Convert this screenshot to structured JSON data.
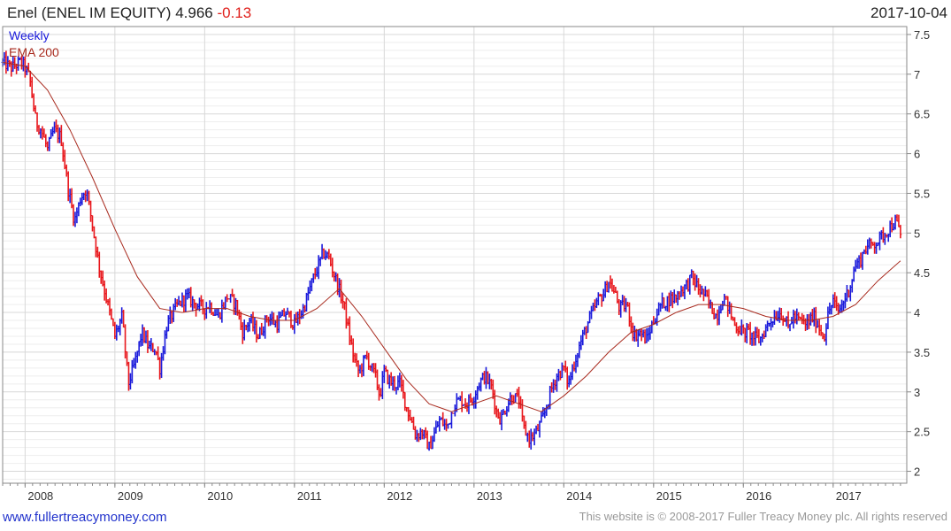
{
  "header": {
    "name": "Enel (ENEL IM EQUITY)",
    "last": "4.966",
    "change": "-0.13",
    "date": "2017-10-04"
  },
  "legend": {
    "period": "Weekly",
    "ema": "EMA 200"
  },
  "footer": {
    "link": "www.fullertreacymoney.com",
    "copyright": "This website is © 2008-2017 Fuller Treacy Money plc. All rights reserved"
  },
  "colors": {
    "up": "#1a1adb",
    "down": "#e8161b",
    "ema": "#a82a1e",
    "grid": "#d8d8d8",
    "frame": "#8a8a8a"
  },
  "chart_data": {
    "type": "line",
    "subtype": "weekly price bars with 200-period EMA",
    "title": "",
    "xlabel": "",
    "ylabel": "",
    "y_axis_position": "right",
    "grid": true,
    "xlim": [
      2007.75,
      2017.82
    ],
    "ylim": [
      1.85,
      7.6
    ],
    "x_ticks": [
      "2008",
      "2009",
      "2010",
      "2011",
      "2012",
      "2013",
      "2014",
      "2015",
      "2016",
      "2017"
    ],
    "y_ticks": [
      "2",
      "2.5",
      "3",
      "3.5",
      "4",
      "4.5",
      "5",
      "5.5",
      "6",
      "6.5",
      "7",
      "7.5"
    ],
    "series": [
      {
        "name": "Weekly",
        "x": [
          2007.75,
          2007.85,
          2007.95,
          2008.0,
          2008.05,
          2008.12,
          2008.18,
          2008.25,
          2008.32,
          2008.4,
          2008.48,
          2008.55,
          2008.62,
          2008.68,
          2008.75,
          2008.82,
          2008.9,
          2009.0,
          2009.08,
          2009.15,
          2009.22,
          2009.3,
          2009.38,
          2009.45,
          2009.5,
          2009.58,
          2009.7,
          2009.8,
          2009.9,
          2010.0,
          2010.05,
          2010.15,
          2010.25,
          2010.35,
          2010.42,
          2010.5,
          2010.6,
          2010.7,
          2010.8,
          2010.9,
          2011.0,
          2011.1,
          2011.2,
          2011.27,
          2011.32,
          2011.38,
          2011.45,
          2011.55,
          2011.62,
          2011.68,
          2011.72,
          2011.8,
          2011.9,
          2011.95,
          2012.0,
          2012.05,
          2012.1,
          2012.18,
          2012.25,
          2012.3,
          2012.35,
          2012.42,
          2012.5,
          2012.55,
          2012.62,
          2012.7,
          2012.78,
          2012.85,
          2012.92,
          2013.0,
          2013.05,
          2013.12,
          2013.2,
          2013.25,
          2013.3,
          2013.35,
          2013.42,
          2013.5,
          2013.55,
          2013.62,
          2013.7,
          2013.78,
          2013.85,
          2013.92,
          2014.0,
          2014.05,
          2014.1,
          2014.18,
          2014.28,
          2014.38,
          2014.45,
          2014.5,
          2014.58,
          2014.62,
          2014.7,
          2014.78,
          2014.85,
          2014.92,
          2015.0,
          2015.08,
          2015.15,
          2015.25,
          2015.32,
          2015.38,
          2015.42,
          2015.5,
          2015.58,
          2015.62,
          2015.7,
          2015.78,
          2015.82,
          2015.9,
          2016.0,
          2016.05,
          2016.1,
          2016.18,
          2016.25,
          2016.3,
          2016.4,
          2016.45,
          2016.5,
          2016.55,
          2016.62,
          2016.7,
          2016.78,
          2016.85,
          2016.9,
          2016.95,
          2017.0,
          2017.05,
          2017.1,
          2017.18,
          2017.25,
          2017.3,
          2017.35,
          2017.42,
          2017.5,
          2017.58,
          2017.65,
          2017.7,
          2017.75
        ],
        "values": [
          7.15,
          7.08,
          7.15,
          7.08,
          6.95,
          6.4,
          6.3,
          6.05,
          6.3,
          6.2,
          5.55,
          5.15,
          5.45,
          5.55,
          5.1,
          4.6,
          4.2,
          3.7,
          3.95,
          3.1,
          3.35,
          3.75,
          3.55,
          3.55,
          3.3,
          3.85,
          4.1,
          4.2,
          4.1,
          4.05,
          4.1,
          3.95,
          4.2,
          4.1,
          3.75,
          3.9,
          3.7,
          3.95,
          3.85,
          4.0,
          3.85,
          4.05,
          4.4,
          4.6,
          4.75,
          4.7,
          4.45,
          4.1,
          3.65,
          3.35,
          3.25,
          3.45,
          3.2,
          2.95,
          3.25,
          3.15,
          3.1,
          3.1,
          2.8,
          2.65,
          2.45,
          2.5,
          2.3,
          2.45,
          2.65,
          2.55,
          2.85,
          2.9,
          2.85,
          2.95,
          3.1,
          3.2,
          3.05,
          2.75,
          2.65,
          2.8,
          2.95,
          2.9,
          2.55,
          2.4,
          2.5,
          2.7,
          3.0,
          3.2,
          3.3,
          3.1,
          3.3,
          3.6,
          3.9,
          4.15,
          4.25,
          4.4,
          4.2,
          4.05,
          4.1,
          3.7,
          3.75,
          3.65,
          3.9,
          4.1,
          4.15,
          4.2,
          4.3,
          4.35,
          4.45,
          4.3,
          4.2,
          4.1,
          3.95,
          4.2,
          4.1,
          3.85,
          3.75,
          3.75,
          3.7,
          3.65,
          3.8,
          3.9,
          4.0,
          3.95,
          3.8,
          3.95,
          3.9,
          3.85,
          3.95,
          3.8,
          3.7,
          4.0,
          4.15,
          4.0,
          4.1,
          4.3,
          4.6,
          4.65,
          4.8,
          4.85,
          4.9,
          5.0,
          5.1,
          5.15,
          4.97
        ]
      },
      {
        "name": "EMA 200",
        "x": [
          2007.75,
          2008.0,
          2008.25,
          2008.5,
          2008.75,
          2009.0,
          2009.25,
          2009.5,
          2009.75,
          2010.0,
          2010.25,
          2010.5,
          2010.75,
          2011.0,
          2011.25,
          2011.5,
          2011.75,
          2012.0,
          2012.25,
          2012.5,
          2012.75,
          2013.0,
          2013.25,
          2013.5,
          2013.75,
          2014.0,
          2014.25,
          2014.5,
          2014.75,
          2015.0,
          2015.25,
          2015.5,
          2015.75,
          2016.0,
          2016.25,
          2016.5,
          2016.75,
          2017.0,
          2017.25,
          2017.5,
          2017.75
        ],
        "values": [
          7.15,
          7.1,
          6.8,
          6.3,
          5.7,
          5.05,
          4.45,
          4.05,
          4.0,
          4.05,
          4.05,
          3.95,
          3.9,
          3.9,
          4.05,
          4.3,
          3.95,
          3.55,
          3.15,
          2.85,
          2.75,
          2.85,
          2.95,
          2.85,
          2.75,
          2.95,
          3.2,
          3.5,
          3.75,
          3.85,
          4.0,
          4.1,
          4.1,
          4.05,
          3.95,
          3.9,
          3.9,
          3.95,
          4.1,
          4.4,
          4.65
        ]
      }
    ]
  }
}
